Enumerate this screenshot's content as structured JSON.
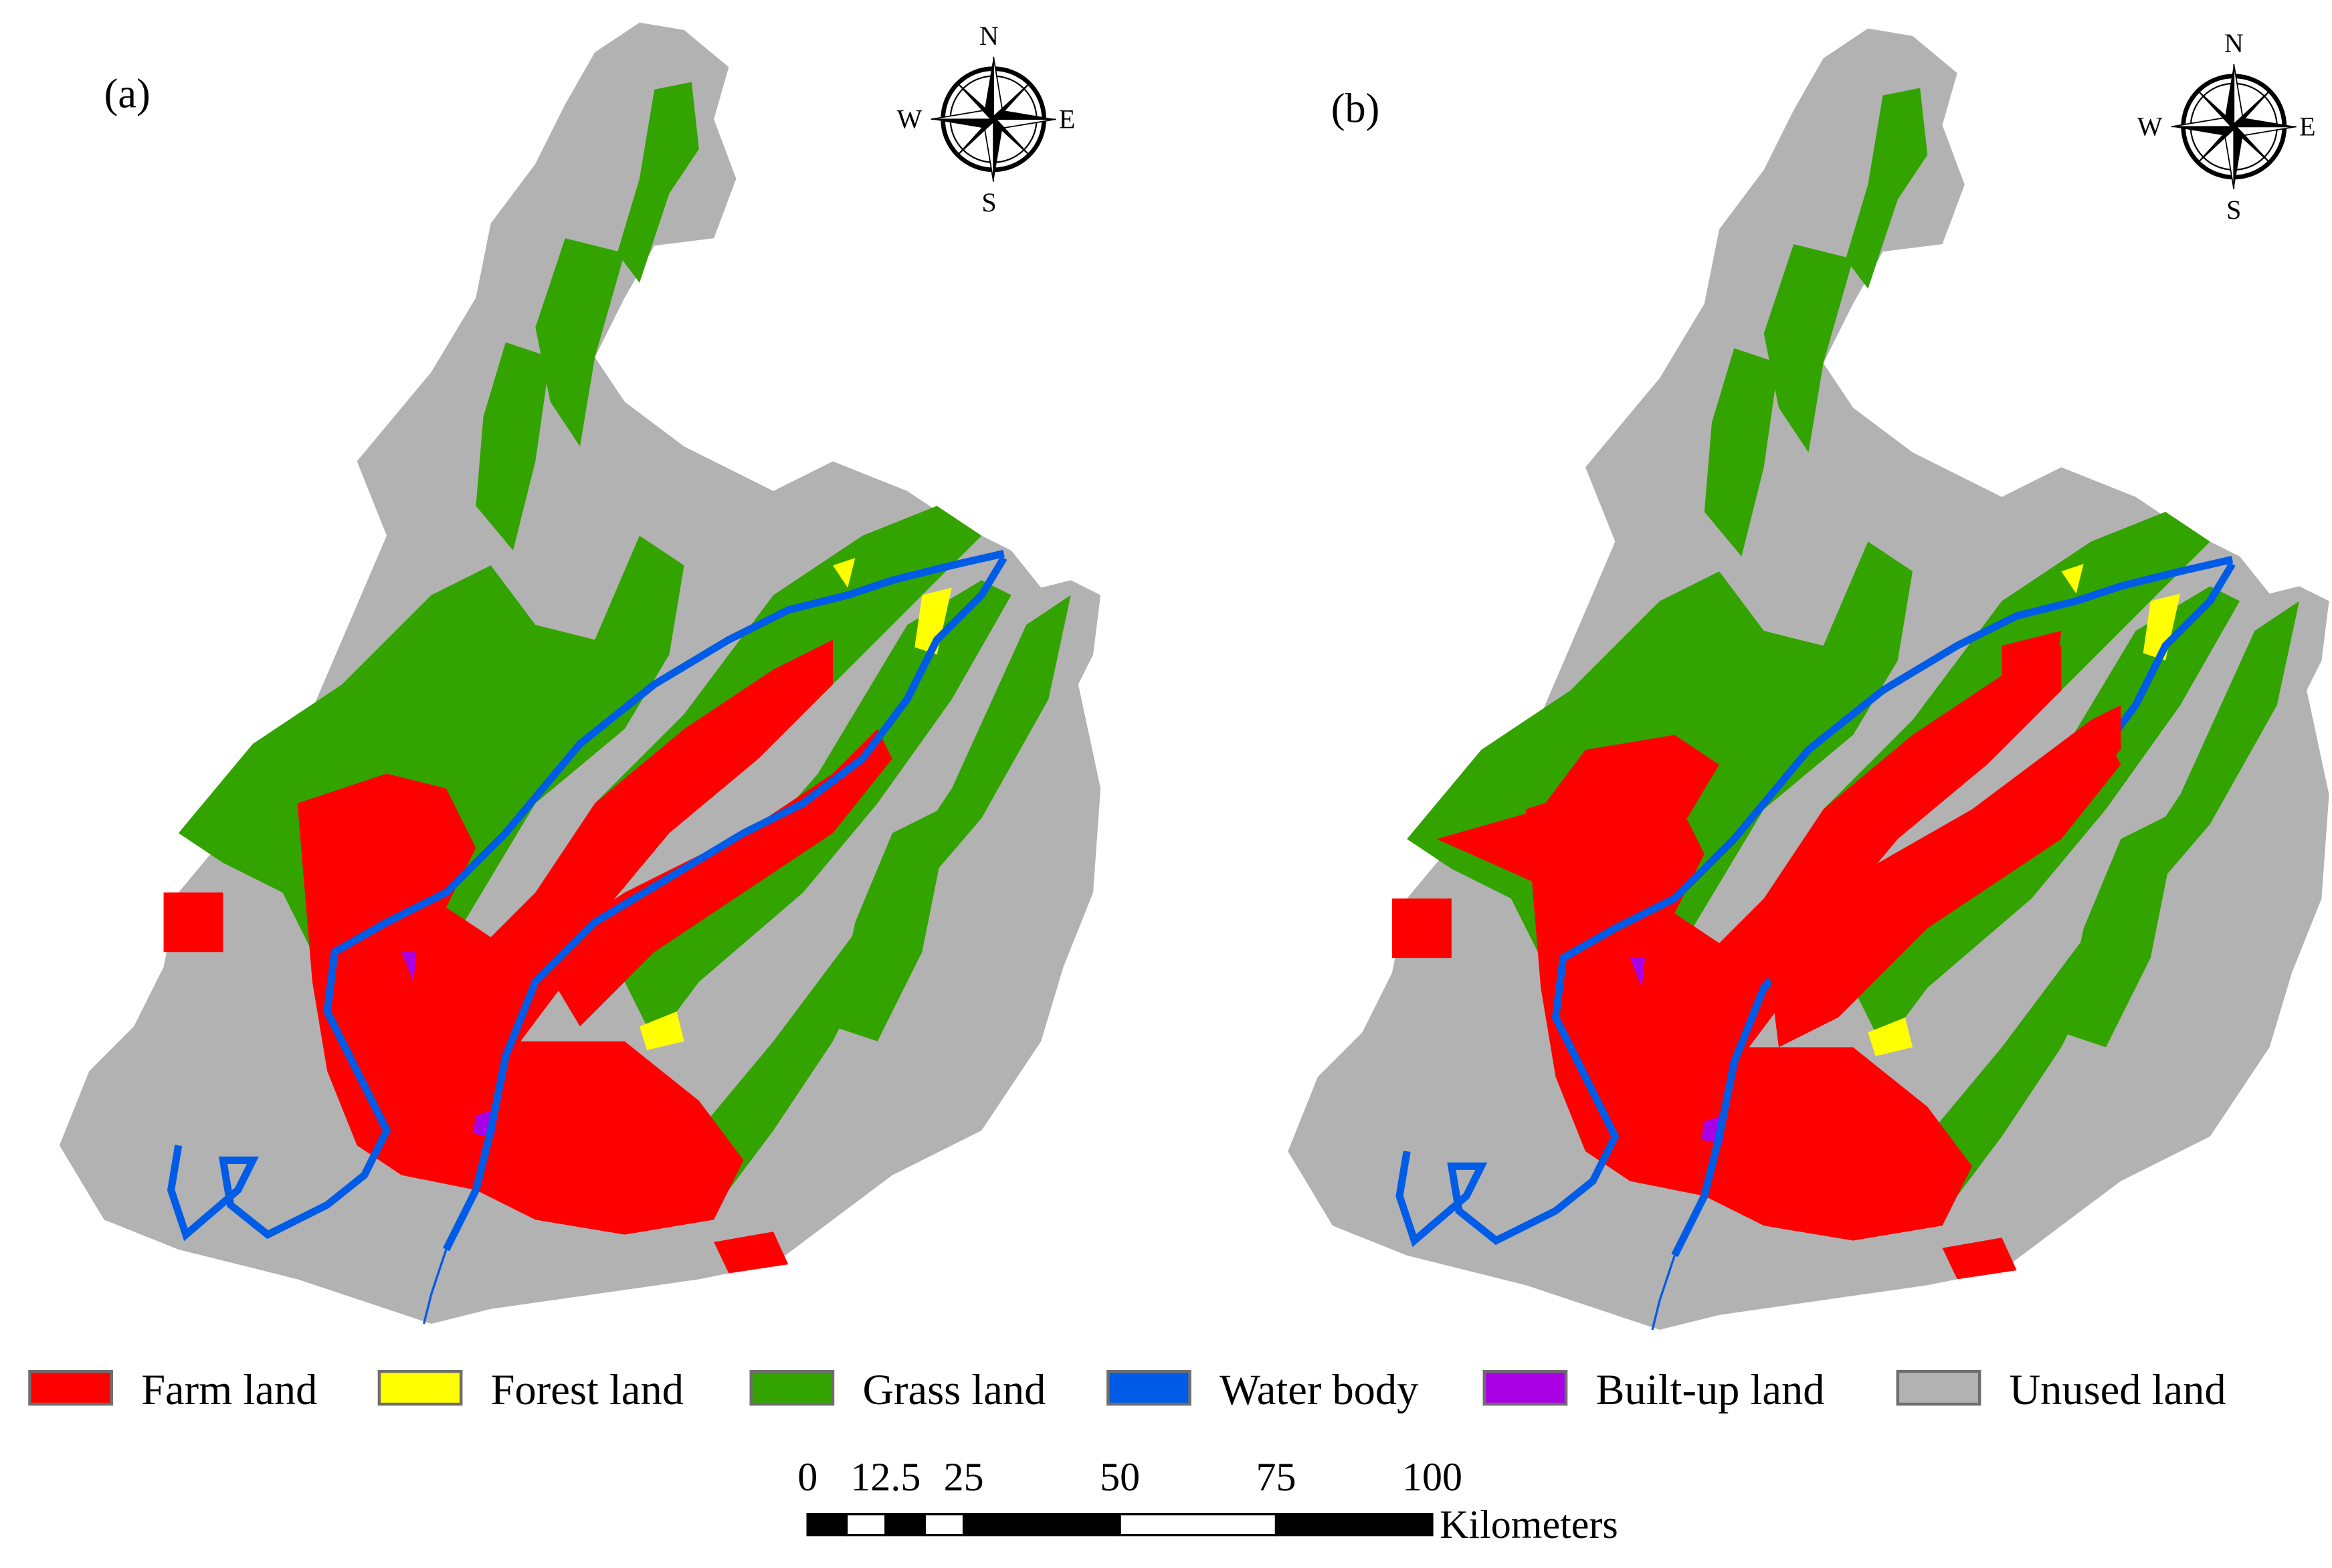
{
  "panels": [
    {
      "label": "(a)"
    },
    {
      "label": "(b)"
    }
  ],
  "compass": {
    "north": "N",
    "south": "S",
    "east": "E",
    "west": "W"
  },
  "legend": [
    {
      "label": "Farm land",
      "color": "#ff0000"
    },
    {
      "label": "Forest land",
      "color": "#ffff00"
    },
    {
      "label": "Grass land",
      "color": "#33a300"
    },
    {
      "label": "Water body",
      "color": "#005ce6"
    },
    {
      "label": "Built-up land",
      "color": "#a900e6"
    },
    {
      "label": "Unused land",
      "color": "#b2b2b2"
    }
  ],
  "scale_bar": {
    "ticks": [
      0,
      12.5,
      25,
      50,
      75,
      100
    ],
    "unit": "Kilometers"
  }
}
